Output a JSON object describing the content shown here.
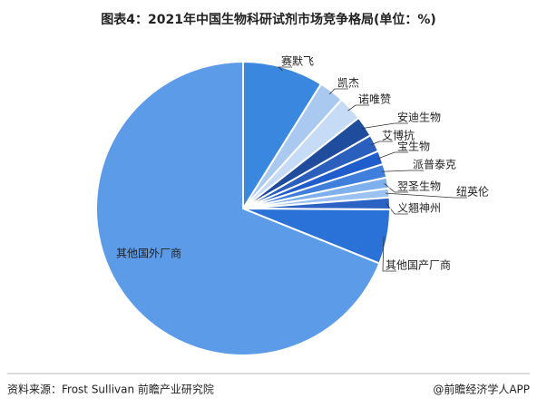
{
  "chart_data": {
    "type": "pie",
    "title": "图表4：2021年中国生物科研试剂市场竞争格局(单位：%)",
    "categories": [
      "赛默飞",
      "凯杰",
      "诺唯赞",
      "安迪生物",
      "艾博抗",
      "宝生物",
      "派普泰克",
      "翌圣生物",
      "纽英伦",
      "义翘神州",
      "其他国产厂商",
      "其他国外厂商"
    ],
    "values": [
      8.9,
      2.8,
      2.7,
      2.3,
      1.9,
      1.5,
      1.5,
      1.2,
      1.0,
      1.3,
      6.0,
      68.9
    ],
    "colors": [
      "#3a87e0",
      "#a9c9f1",
      "#c6dbf6",
      "#1f4c9c",
      "#2a5fbe",
      "#1f5ccc",
      "#3f7fdb",
      "#7fb0ee",
      "#9cc2f2",
      "#2c62c4",
      "#2b72d8",
      "#5b9be8"
    ],
    "source": "资料来源：Frost Sullivan 前瞻产业研究院",
    "credit": "@前瞻经济学人APP"
  }
}
